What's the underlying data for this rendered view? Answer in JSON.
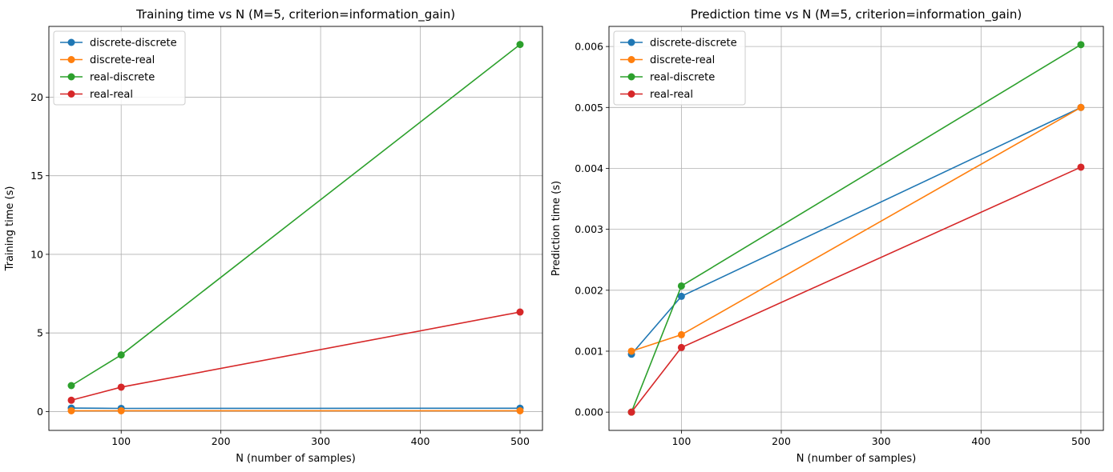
{
  "chart_data": [
    {
      "type": "line",
      "title": "Training time vs N (M=5, criterion=information_gain)",
      "xlabel": "N (number of samples)",
      "ylabel": "Training time (s)",
      "xlim": [
        27.5,
        522.5
      ],
      "ylim": [
        -1.2,
        24.5
      ],
      "xticks": [
        100,
        200,
        300,
        400,
        500
      ],
      "yticks": [
        0,
        5,
        10,
        15,
        20
      ],
      "grid": true,
      "legend": "top-left",
      "x": [
        50,
        100,
        500
      ],
      "series": [
        {
          "name": "discrete-discrete",
          "color": "#1f77b4",
          "values": [
            0.22,
            0.2,
            0.21
          ]
        },
        {
          "name": "discrete-real",
          "color": "#ff7f0e",
          "values": [
            0.05,
            0.05,
            0.05
          ]
        },
        {
          "name": "real-discrete",
          "color": "#2ca02c",
          "values": [
            1.65,
            3.6,
            23.35
          ]
        },
        {
          "name": "real-real",
          "color": "#d62728",
          "values": [
            0.72,
            1.55,
            6.33
          ]
        }
      ]
    },
    {
      "type": "line",
      "title": "Prediction time vs N (M=5, criterion=information_gain)",
      "xlabel": "N (number of samples)",
      "ylabel": "Prediction time (s)",
      "xlim": [
        27.5,
        522.5
      ],
      "ylim": [
        -0.0003,
        0.00633
      ],
      "xticks": [
        100,
        200,
        300,
        400,
        500
      ],
      "yticks": [
        0.0,
        0.001,
        0.002,
        0.003,
        0.004,
        0.005,
        0.006
      ],
      "ytick_labels": [
        "0.000",
        "0.001",
        "0.002",
        "0.003",
        "0.004",
        "0.005",
        "0.006"
      ],
      "grid": true,
      "legend": "top-left",
      "x": [
        50,
        100,
        500
      ],
      "series": [
        {
          "name": "discrete-discrete",
          "color": "#1f77b4",
          "values": [
            0.00095,
            0.0019,
            0.005
          ]
        },
        {
          "name": "discrete-real",
          "color": "#ff7f0e",
          "values": [
            0.001,
            0.00127,
            0.005
          ]
        },
        {
          "name": "real-discrete",
          "color": "#2ca02c",
          "values": [
            0.0,
            0.00207,
            0.00603
          ]
        },
        {
          "name": "real-real",
          "color": "#d62728",
          "values": [
            0.0,
            0.00106,
            0.00402
          ]
        }
      ]
    }
  ]
}
